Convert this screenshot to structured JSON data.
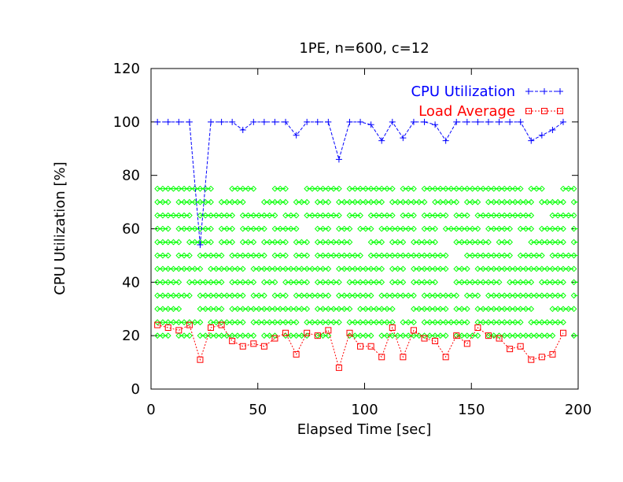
{
  "chart_data": {
    "type": "line",
    "title": "1PE, n=600, c=12",
    "xlabel": "Elapsed Time [sec]",
    "ylabel": "CPU Utilization [%]",
    "xlim": [
      0,
      200
    ],
    "ylim": [
      0,
      120
    ],
    "xticks": [
      0,
      50,
      100,
      150,
      200
    ],
    "yticks": [
      0,
      20,
      40,
      60,
      80,
      100,
      120
    ],
    "grid": false,
    "legend_position": "top-right",
    "colors": {
      "cpu": "#0000ff",
      "load": "#ff0000",
      "tasks": "#00ff00"
    },
    "series": [
      {
        "name": "CPU Utilization",
        "marker": "plus",
        "x": [
          3,
          8,
          13,
          18,
          23,
          28,
          33,
          38,
          43,
          48,
          53,
          58,
          63,
          68,
          73,
          78,
          83,
          88,
          93,
          98,
          103,
          108,
          113,
          118,
          123,
          128,
          133,
          138,
          143,
          148,
          153,
          158,
          163,
          168,
          173,
          178,
          183,
          188,
          193
        ],
        "y": [
          100,
          100,
          100,
          100,
          54,
          100,
          100,
          100,
          97,
          100,
          100,
          100,
          100,
          95,
          100,
          100,
          100,
          86,
          100,
          100,
          99,
          93,
          100,
          94,
          100,
          100,
          99,
          93,
          100,
          100,
          100,
          100,
          100,
          100,
          100,
          93,
          95,
          97,
          100
        ]
      },
      {
        "name": "Load Average",
        "marker": "square",
        "x": [
          3,
          8,
          13,
          18,
          23,
          28,
          33,
          38,
          43,
          48,
          53,
          58,
          63,
          68,
          73,
          78,
          83,
          88,
          93,
          98,
          103,
          108,
          113,
          118,
          123,
          128,
          133,
          138,
          143,
          148,
          153,
          158,
          163,
          168,
          173,
          178,
          183,
          188,
          193
        ],
        "y": [
          24,
          23,
          22,
          24,
          11,
          23,
          24,
          18,
          16,
          17,
          16,
          19,
          21,
          13,
          21,
          20,
          22,
          8,
          21,
          16,
          16,
          12,
          23,
          12,
          22,
          19,
          18,
          12,
          20,
          17,
          23,
          20,
          19,
          15,
          16,
          11,
          12,
          13,
          21
        ]
      }
    ],
    "task_lines": [
      {
        "y": 75,
        "segments": [
          [
            3,
            28
          ],
          [
            38,
            48
          ],
          [
            58,
            63
          ],
          [
            73,
            88
          ],
          [
            93,
            113
          ],
          [
            118,
            123
          ],
          [
            128,
            173
          ],
          [
            178,
            183
          ],
          [
            193,
            198
          ]
        ]
      },
      {
        "y": 70,
        "segments": [
          [
            3,
            8
          ],
          [
            13,
            28
          ],
          [
            33,
            43
          ],
          [
            53,
            63
          ],
          [
            68,
            73
          ],
          [
            78,
            83
          ],
          [
            88,
            108
          ],
          [
            113,
            128
          ],
          [
            133,
            143
          ],
          [
            148,
            153
          ],
          [
            158,
            178
          ],
          [
            183,
            193
          ],
          [
            198,
            200
          ]
        ]
      },
      {
        "y": 65,
        "segments": [
          [
            3,
            18
          ],
          [
            23,
            38
          ],
          [
            43,
            58
          ],
          [
            63,
            68
          ],
          [
            73,
            88
          ],
          [
            93,
            98
          ],
          [
            103,
            113
          ],
          [
            118,
            123
          ],
          [
            128,
            138
          ],
          [
            143,
            148
          ],
          [
            153,
            178
          ],
          [
            188,
            198
          ]
        ]
      },
      {
        "y": 60,
        "segments": [
          [
            3,
            8
          ],
          [
            13,
            28
          ],
          [
            33,
            38
          ],
          [
            43,
            53
          ],
          [
            58,
            68
          ],
          [
            78,
            83
          ],
          [
            88,
            93
          ],
          [
            98,
            103
          ],
          [
            108,
            123
          ],
          [
            128,
            133
          ],
          [
            138,
            153
          ],
          [
            158,
            168
          ],
          [
            173,
            178
          ],
          [
            183,
            193
          ],
          [
            198,
            200
          ]
        ]
      },
      {
        "y": 55,
        "segments": [
          [
            3,
            13
          ],
          [
            18,
            28
          ],
          [
            33,
            38
          ],
          [
            43,
            48
          ],
          [
            53,
            63
          ],
          [
            68,
            73
          ],
          [
            78,
            93
          ],
          [
            103,
            108
          ],
          [
            113,
            118
          ],
          [
            123,
            133
          ],
          [
            143,
            158
          ],
          [
            163,
            168
          ],
          [
            178,
            193
          ],
          [
            198,
            200
          ]
        ]
      },
      {
        "y": 50,
        "segments": [
          [
            3,
            8
          ],
          [
            13,
            18
          ],
          [
            23,
            33
          ],
          [
            38,
            53
          ],
          [
            58,
            63
          ],
          [
            68,
            73
          ],
          [
            78,
            98
          ],
          [
            103,
            138
          ],
          [
            148,
            168
          ],
          [
            173,
            183
          ],
          [
            188,
            200
          ]
        ]
      },
      {
        "y": 45,
        "segments": [
          [
            3,
            23
          ],
          [
            28,
            43
          ],
          [
            48,
            83
          ],
          [
            88,
            108
          ],
          [
            113,
            118
          ],
          [
            123,
            138
          ],
          [
            143,
            148
          ],
          [
            153,
            198
          ]
        ]
      },
      {
        "y": 40,
        "segments": [
          [
            3,
            13
          ],
          [
            18,
            33
          ],
          [
            38,
            48
          ],
          [
            53,
            58
          ],
          [
            63,
            73
          ],
          [
            78,
            88
          ],
          [
            93,
            108
          ],
          [
            113,
            118
          ],
          [
            123,
            133
          ],
          [
            143,
            163
          ],
          [
            168,
            178
          ],
          [
            183,
            193
          ],
          [
            198,
            200
          ]
        ]
      },
      {
        "y": 35,
        "segments": [
          [
            3,
            18
          ],
          [
            23,
            43
          ],
          [
            48,
            53
          ],
          [
            58,
            63
          ],
          [
            68,
            83
          ],
          [
            88,
            103
          ],
          [
            108,
            123
          ],
          [
            128,
            143
          ],
          [
            148,
            153
          ],
          [
            158,
            193
          ],
          [
            198,
            200
          ]
        ]
      },
      {
        "y": 30,
        "segments": [
          [
            3,
            13
          ],
          [
            23,
            33
          ],
          [
            38,
            73
          ],
          [
            78,
            93
          ],
          [
            98,
            113
          ],
          [
            123,
            138
          ],
          [
            143,
            148
          ],
          [
            153,
            178
          ],
          [
            188,
            198
          ]
        ]
      },
      {
        "y": 25,
        "segments": [
          [
            3,
            23
          ],
          [
            28,
            43
          ],
          [
            48,
            68
          ],
          [
            73,
            88
          ],
          [
            93,
            113
          ],
          [
            118,
            123
          ],
          [
            128,
            148
          ],
          [
            153,
            173
          ],
          [
            178,
            193
          ]
        ]
      },
      {
        "y": 20,
        "segments": [
          [
            3,
            8
          ],
          [
            13,
            18
          ],
          [
            23,
            48
          ],
          [
            53,
            58
          ],
          [
            63,
            73
          ],
          [
            78,
            83
          ],
          [
            93,
            103
          ],
          [
            108,
            138
          ],
          [
            143,
            153
          ],
          [
            158,
            188
          ],
          [
            198,
            200
          ]
        ]
      }
    ]
  }
}
